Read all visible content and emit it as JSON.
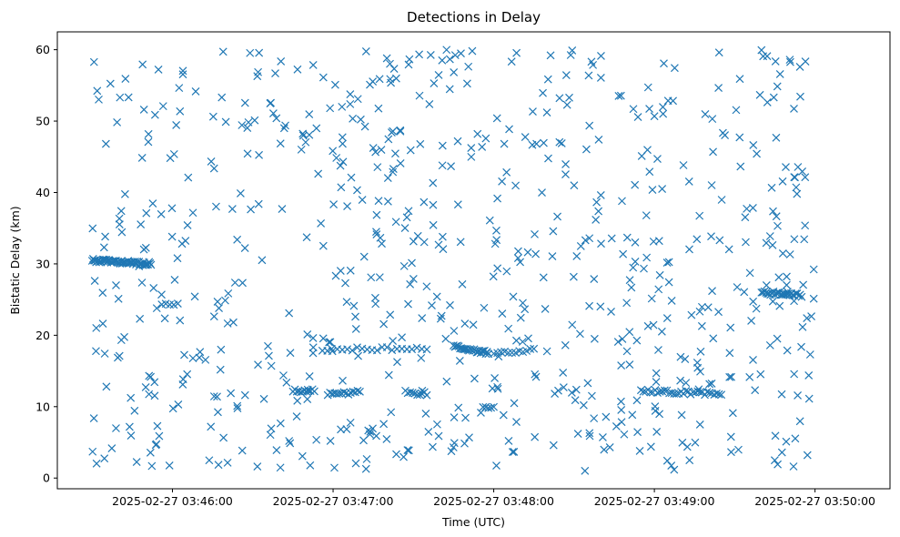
{
  "chart_data": {
    "type": "scatter",
    "title": "Detections in Delay",
    "xlabel": "Time (UTC)",
    "ylabel": "Bistatic Delay (km)",
    "marker": "x",
    "color": "#1f77b4",
    "grid": false,
    "legend": "none",
    "xlim": [
      "2025-02-27 03:45:17",
      "2025-02-27 03:50:28"
    ],
    "ylim": [
      -1.5,
      62.5
    ],
    "x_ticks": [
      "2025-02-27 03:46:00",
      "2025-02-27 03:47:00",
      "2025-02-27 03:48:00",
      "2025-02-27 03:49:00",
      "2025-02-27 03:50:00"
    ],
    "y_ticks": [
      0,
      10,
      20,
      30,
      40,
      50,
      60
    ],
    "tracks": [
      {
        "x": [
          "03:45:30",
          "03:45:52"
        ],
        "y": [
          30.5,
          30.0
        ],
        "n": 60
      },
      {
        "x": [
          "03:45:56",
          "03:46:02"
        ],
        "y": [
          24.5,
          24.5
        ],
        "n": 5
      },
      {
        "x": [
          "03:46:45",
          "03:46:53"
        ],
        "y": [
          12.3,
          12.2
        ],
        "n": 12
      },
      {
        "x": [
          "03:46:58",
          "03:47:10"
        ],
        "y": [
          11.8,
          12.0
        ],
        "n": 15
      },
      {
        "x": [
          "03:46:56",
          "03:47:35"
        ],
        "y": [
          18.0,
          18.2
        ],
        "n": 22
      },
      {
        "x": [
          "03:47:27",
          "03:47:35"
        ],
        "y": [
          12.0,
          11.8
        ],
        "n": 10
      },
      {
        "x": [
          "03:47:45",
          "03:47:58"
        ],
        "y": [
          18.5,
          17.5
        ],
        "n": 28
      },
      {
        "x": [
          "03:47:56",
          "03:48:00"
        ],
        "y": [
          9.8,
          9.8
        ],
        "n": 5
      },
      {
        "x": [
          "03:48:00",
          "03:48:15"
        ],
        "y": [
          17.4,
          17.9
        ],
        "n": 12
      },
      {
        "x": [
          "03:48:55",
          "03:49:25"
        ],
        "y": [
          12.2,
          11.8
        ],
        "n": 35
      },
      {
        "x": [
          "03:49:40",
          "03:49:55"
        ],
        "y": [
          26.0,
          25.6
        ],
        "n": 28
      }
    ],
    "background": {
      "count": 720,
      "x_range": [
        "03:45:30",
        "03:50:00"
      ],
      "y_range": [
        1,
        60
      ],
      "seed": 20250227
    }
  }
}
